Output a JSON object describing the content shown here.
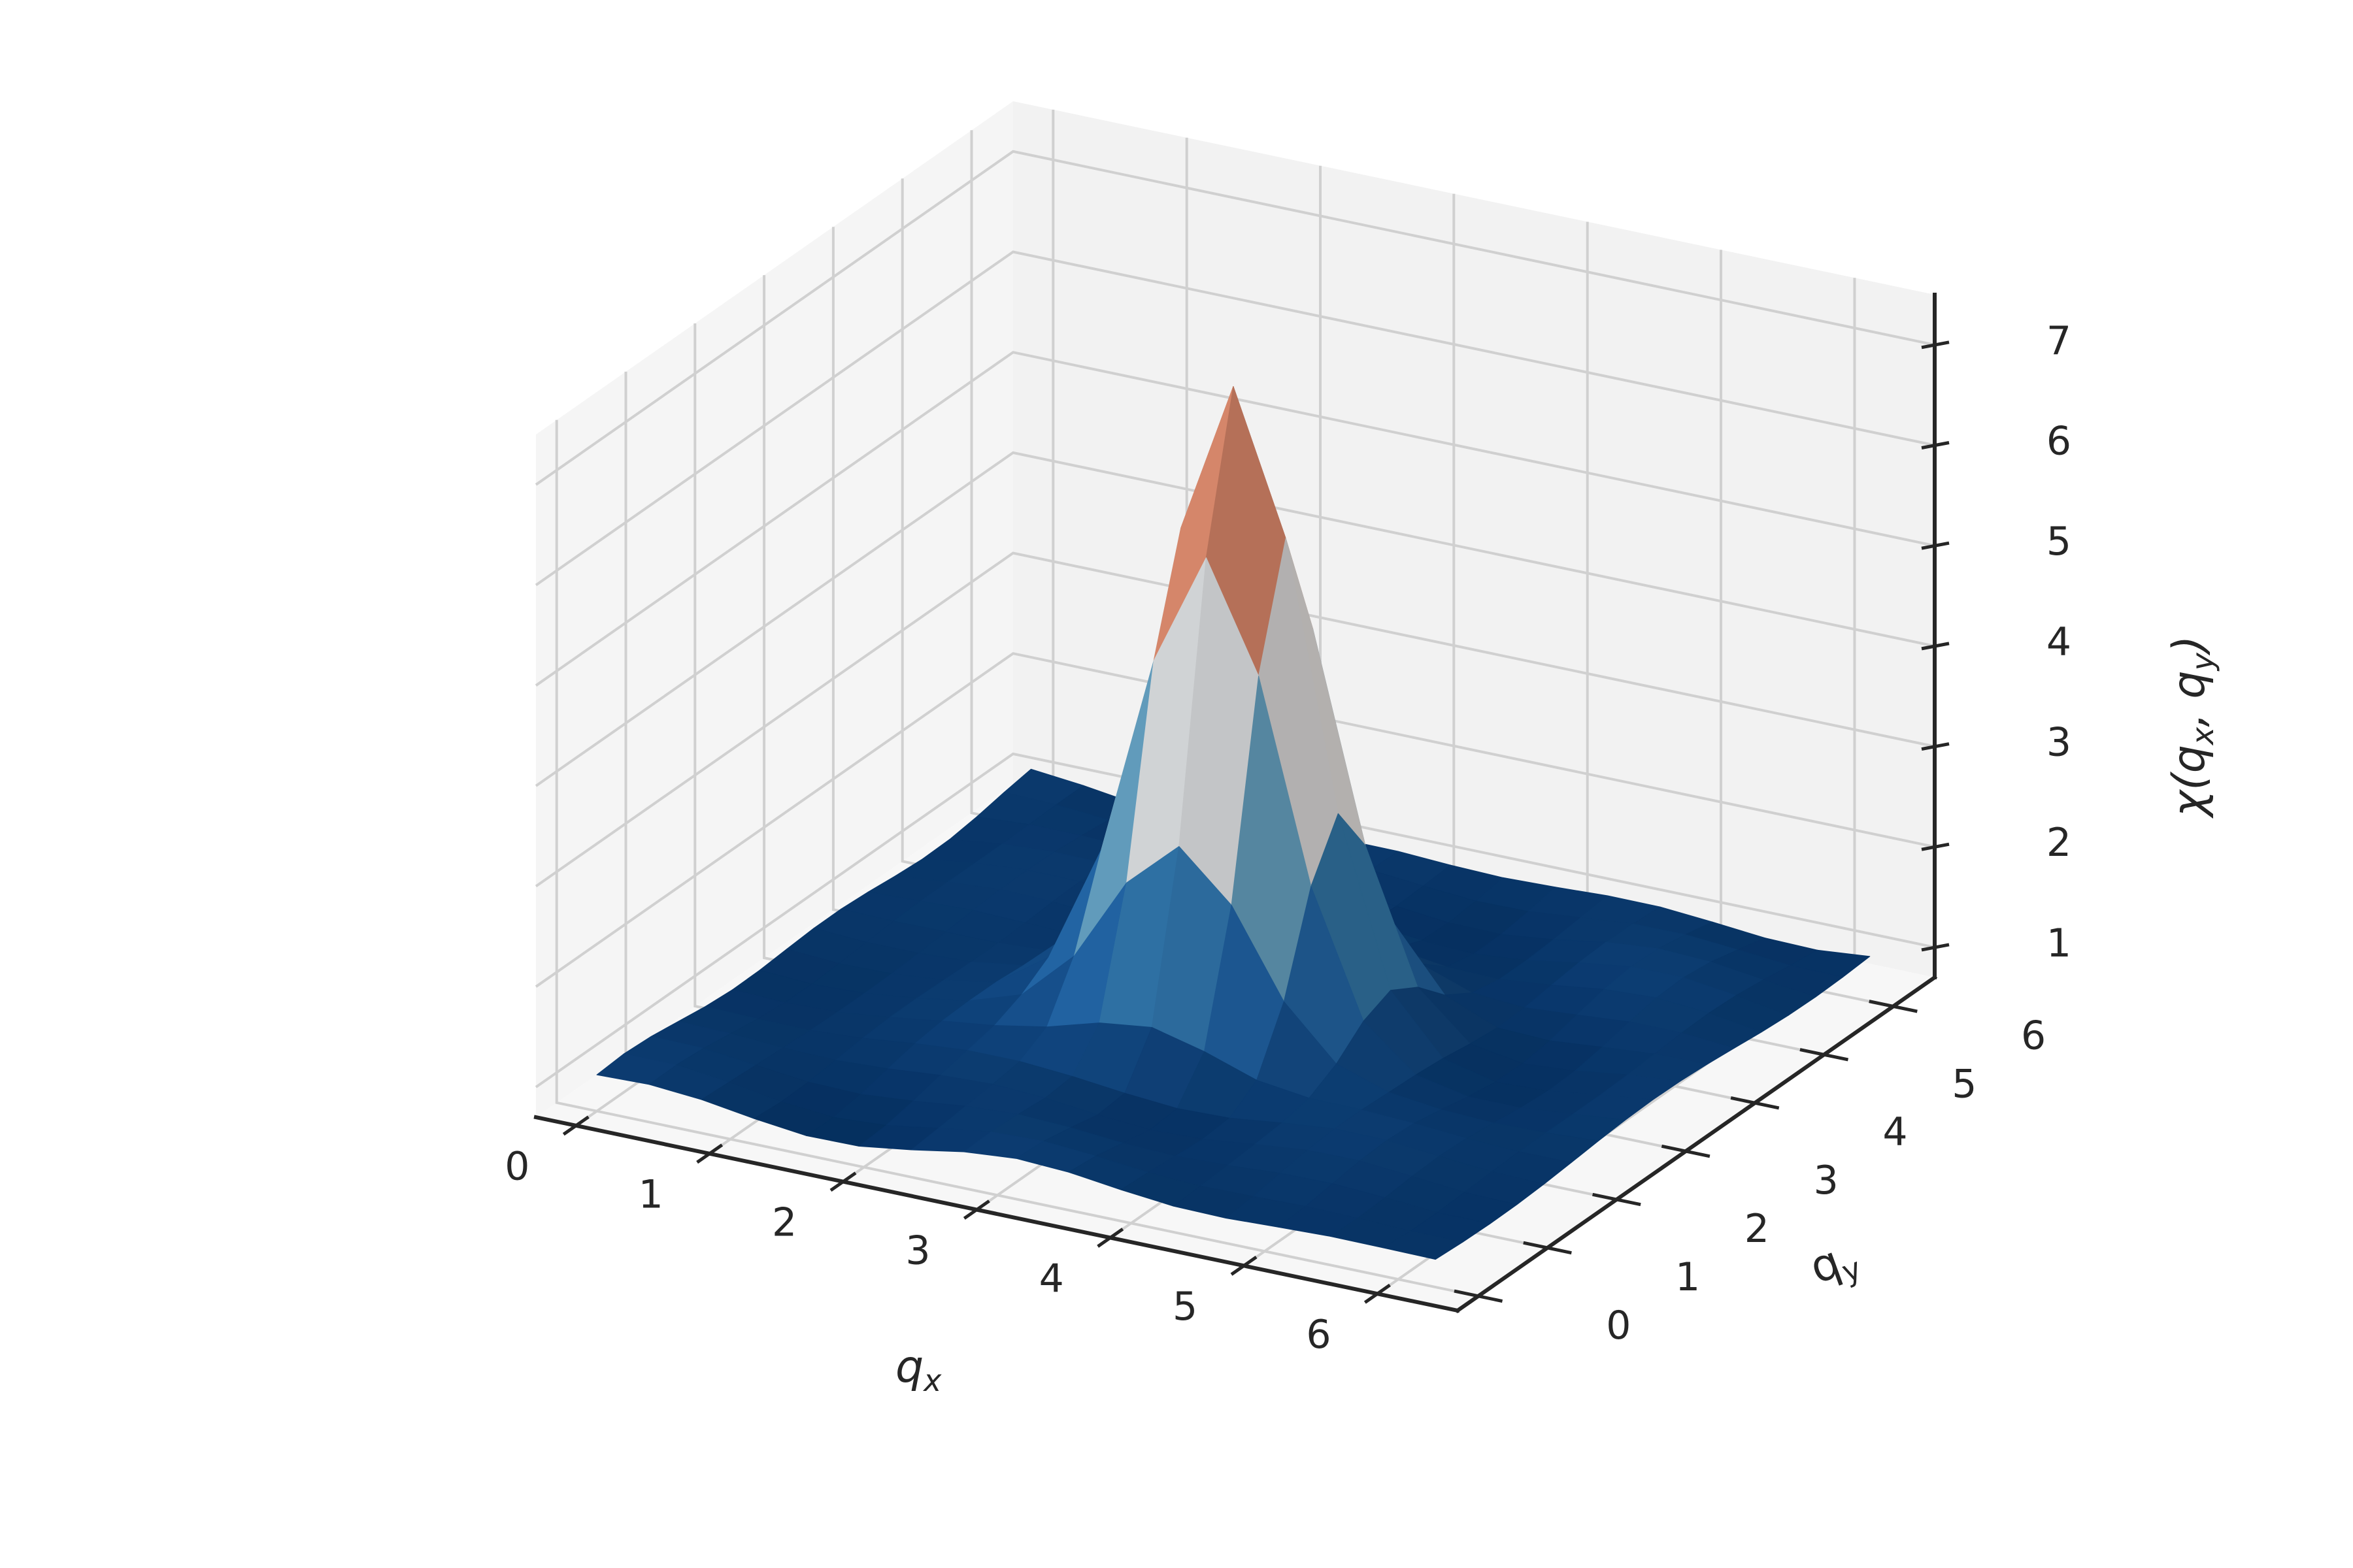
{
  "chart_data": {
    "type": "surface3d",
    "colormap": "RdBu_r",
    "xlabel_base": "q",
    "xlabel_sub": "x",
    "ylabel_base": "q",
    "ylabel_sub": "y",
    "zlabel_text": "χ(q",
    "zlabel_sub1": "x",
    "zlabel_mid": ", q",
    "zlabel_sub2": "y",
    "zlabel_end": ")",
    "xlim": [
      -0.3,
      6.6
    ],
    "ylim": [
      -0.3,
      6.6
    ],
    "zlim": [
      0.7,
      7.5
    ],
    "x_ticks": [
      0,
      1,
      2,
      3,
      4,
      5,
      6
    ],
    "x_tick_labels": [
      "0",
      "1",
      "2",
      "3",
      "4",
      "5",
      "6"
    ],
    "y_ticks": [
      0,
      1,
      2,
      3,
      4,
      5,
      6
    ],
    "y_tick_labels": [
      "0",
      "1",
      "2",
      "3",
      "4",
      "5",
      "6"
    ],
    "z_ticks": [
      1,
      2,
      3,
      4,
      5,
      6,
      7
    ],
    "z_tick_labels": [
      "1",
      "2",
      "3",
      "4",
      "5",
      "6",
      "7"
    ],
    "grid": true,
    "grid_n": 17,
    "grid_range": [
      0,
      6.28
    ],
    "peak_location": [
      3.14,
      3.14
    ],
    "peak_value": 7.25,
    "background_level": 1.0
  }
}
